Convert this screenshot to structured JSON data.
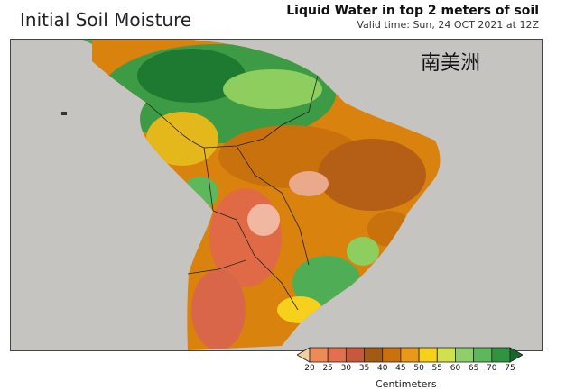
{
  "header": {
    "title": "Initial Soil Moisture",
    "subtitle_line1": "Liquid Water in top 2 meters of soil",
    "subtitle_line2": "Valid time: Sun, 24 OCT 2021 at 12Z"
  },
  "map": {
    "region_label": "南美洲",
    "ocean_color": "#c6c4c1",
    "border_color": "#222222"
  },
  "colorbar": {
    "units_label": "Centimeters",
    "ticks": [
      "20",
      "25",
      "30",
      "35",
      "40",
      "45",
      "50",
      "55",
      "60",
      "65",
      "70",
      "75"
    ],
    "colors": [
      "#f2cf9c",
      "#ee8a55",
      "#e2704a",
      "#c8583c",
      "#a35a13",
      "#c9720d",
      "#e89a16",
      "#f7d01c",
      "#cfe24e",
      "#8dd06a",
      "#5cb85a",
      "#2f9440",
      "#16692a"
    ]
  }
}
